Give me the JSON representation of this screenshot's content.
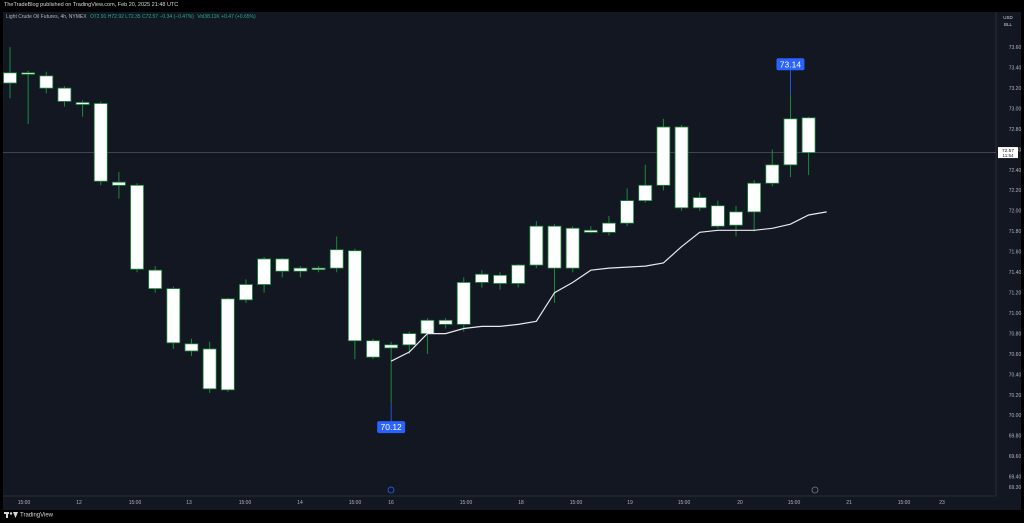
{
  "header": {
    "publisher": "TheTradeBlog published on TradingView.com, Feb 20, 2025 21:48 UTC",
    "symbol": "Light Crude Oil Futures, 4h, NYMEX",
    "ohlc": "O72.91 H72.92 L72.35 C72.57 −0.34 (−0.47%)",
    "volume": "Vol38.11K +0.47 (+0.65%)"
  },
  "price_scale": {
    "currency": "USD",
    "unit": "BLL",
    "last_price": "72.57",
    "countdown": "11:54"
  },
  "footer": {
    "brand": "TradingView"
  },
  "colors": {
    "background": "#131722",
    "up_candle": "#ffffff",
    "down_candle": "#ffffff",
    "wick_up": "#1b8a3a",
    "border": "#1b8a3a",
    "ma_line": "#e8e8ee",
    "label_bg": "#2962ff"
  },
  "chart_data": {
    "type": "candlestick",
    "timeframe": "4h",
    "ylim": [
      69.3,
      73.7
    ],
    "yticks": [
      "73.60",
      "73.40",
      "73.20",
      "73.00",
      "72.80",
      "72.60",
      "72.40",
      "72.20",
      "72.00",
      "71.80",
      "71.60",
      "71.40",
      "71.20",
      "71.00",
      "70.80",
      "70.60",
      "70.40",
      "70.20",
      "70.00",
      "69.80",
      "69.60",
      "69.40",
      "69.30"
    ],
    "xticks": [
      "15:00",
      "12",
      "15:00",
      "13",
      "15:00",
      "14",
      "15:00",
      "16",
      "15:00",
      "18",
      "15:00",
      "19",
      "15:00",
      "20",
      "15:00",
      "21",
      "15:00",
      "23"
    ],
    "candles": [
      {
        "o": 73.25,
        "h": 73.6,
        "l": 73.1,
        "c": 73.35
      },
      {
        "o": 73.35,
        "h": 73.37,
        "l": 72.85,
        "c": 73.34
      },
      {
        "o": 73.32,
        "h": 73.36,
        "l": 73.15,
        "c": 73.2
      },
      {
        "o": 73.2,
        "h": 73.22,
        "l": 73.02,
        "c": 73.07
      },
      {
        "o": 73.06,
        "h": 73.08,
        "l": 72.92,
        "c": 73.04
      },
      {
        "o": 73.05,
        "h": 73.07,
        "l": 72.25,
        "c": 72.29
      },
      {
        "o": 72.28,
        "h": 72.38,
        "l": 72.12,
        "c": 72.25
      },
      {
        "o": 72.25,
        "h": 72.27,
        "l": 71.4,
        "c": 71.43
      },
      {
        "o": 71.42,
        "h": 71.46,
        "l": 71.2,
        "c": 71.24
      },
      {
        "o": 71.24,
        "h": 71.26,
        "l": 70.65,
        "c": 70.71
      },
      {
        "o": 70.7,
        "h": 70.75,
        "l": 70.58,
        "c": 70.63
      },
      {
        "o": 70.65,
        "h": 70.72,
        "l": 70.22,
        "c": 70.26
      },
      {
        "o": 70.25,
        "h": 71.15,
        "l": 70.23,
        "c": 71.14
      },
      {
        "o": 71.13,
        "h": 71.33,
        "l": 71.1,
        "c": 71.28
      },
      {
        "o": 71.28,
        "h": 71.55,
        "l": 71.2,
        "c": 71.53
      },
      {
        "o": 71.53,
        "h": 71.54,
        "l": 71.35,
        "c": 71.41
      },
      {
        "o": 71.41,
        "h": 71.46,
        "l": 71.35,
        "c": 71.44
      },
      {
        "o": 71.44,
        "h": 71.46,
        "l": 71.4,
        "c": 71.43
      },
      {
        "o": 71.44,
        "h": 71.75,
        "l": 71.4,
        "c": 71.62
      },
      {
        "o": 71.61,
        "h": 71.63,
        "l": 70.55,
        "c": 70.73
      },
      {
        "o": 70.73,
        "h": 70.75,
        "l": 70.55,
        "c": 70.57
      },
      {
        "o": 70.66,
        "h": 70.72,
        "l": 70.12,
        "c": 70.69
      },
      {
        "o": 70.69,
        "h": 70.82,
        "l": 70.6,
        "c": 70.8
      },
      {
        "o": 70.8,
        "h": 70.95,
        "l": 70.6,
        "c": 70.93
      },
      {
        "o": 70.93,
        "h": 70.95,
        "l": 70.85,
        "c": 70.89
      },
      {
        "o": 70.89,
        "h": 71.35,
        "l": 70.82,
        "c": 71.3
      },
      {
        "o": 71.3,
        "h": 71.42,
        "l": 71.25,
        "c": 71.38
      },
      {
        "o": 71.37,
        "h": 71.4,
        "l": 71.23,
        "c": 71.29
      },
      {
        "o": 71.29,
        "h": 71.48,
        "l": 71.25,
        "c": 71.47
      },
      {
        "o": 71.47,
        "h": 71.9,
        "l": 71.44,
        "c": 71.85
      },
      {
        "o": 71.85,
        "h": 71.87,
        "l": 71.1,
        "c": 71.44
      },
      {
        "o": 71.44,
        "h": 71.85,
        "l": 71.4,
        "c": 71.83
      },
      {
        "o": 71.81,
        "h": 71.85,
        "l": 71.78,
        "c": 71.79
      },
      {
        "o": 71.79,
        "h": 71.95,
        "l": 71.76,
        "c": 71.88
      },
      {
        "o": 71.88,
        "h": 72.22,
        "l": 71.85,
        "c": 72.1
      },
      {
        "o": 72.1,
        "h": 72.45,
        "l": 72.08,
        "c": 72.25
      },
      {
        "o": 72.25,
        "h": 72.9,
        "l": 72.2,
        "c": 72.82
      },
      {
        "o": 72.82,
        "h": 72.84,
        "l": 72.0,
        "c": 72.03
      },
      {
        "o": 72.03,
        "h": 72.18,
        "l": 72.0,
        "c": 72.13
      },
      {
        "o": 72.05,
        "h": 72.1,
        "l": 71.83,
        "c": 71.85
      },
      {
        "o": 71.86,
        "h": 72.05,
        "l": 71.75,
        "c": 71.99
      },
      {
        "o": 71.99,
        "h": 72.3,
        "l": 71.8,
        "c": 72.27
      },
      {
        "o": 72.27,
        "h": 72.6,
        "l": 72.24,
        "c": 72.45
      },
      {
        "o": 72.45,
        "h": 73.14,
        "l": 72.33,
        "c": 72.9
      },
      {
        "o": 72.91,
        "h": 72.92,
        "l": 72.35,
        "c": 72.57
      }
    ],
    "ma_series": {
      "start_index": 21,
      "values": [
        70.53,
        70.62,
        70.8,
        70.8,
        70.85,
        70.87,
        70.87,
        70.89,
        70.92,
        71.2,
        71.3,
        71.42,
        71.44,
        71.45,
        71.46,
        71.49,
        71.65,
        71.79,
        71.81,
        71.81,
        71.81,
        71.83,
        71.87,
        71.96,
        71.99
      ]
    },
    "annotations": [
      {
        "text": "73.14",
        "candle": 43,
        "value": 73.14,
        "position": "above"
      },
      {
        "text": "70.12",
        "candle": 21,
        "value": 70.12,
        "position": "below"
      }
    ],
    "last_price_line": 72.57
  }
}
